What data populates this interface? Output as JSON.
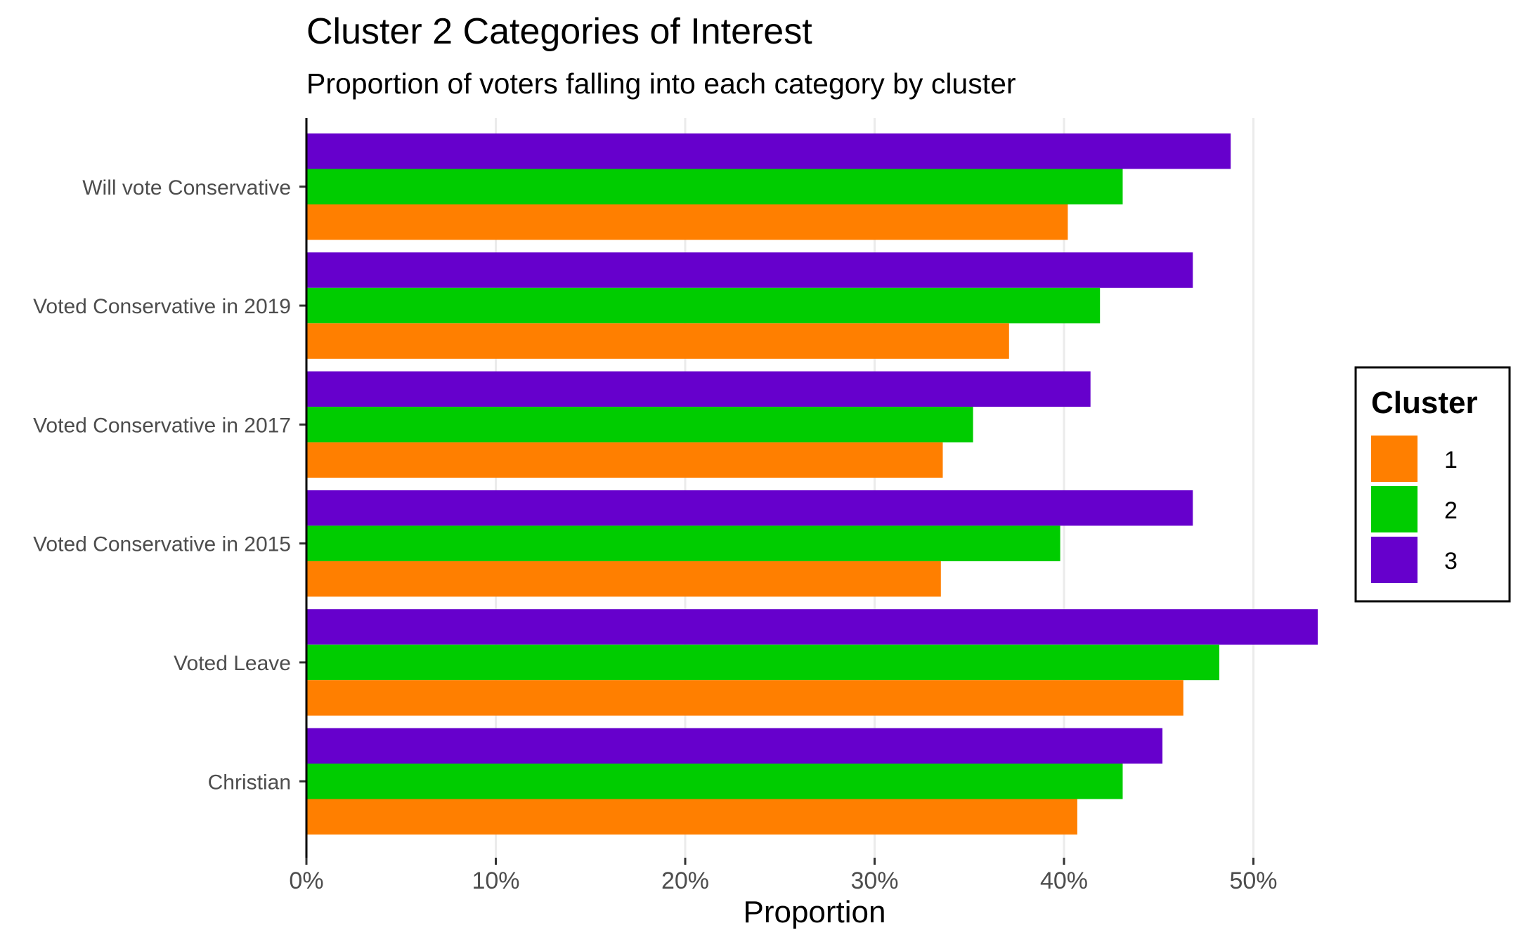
{
  "chart_data": {
    "type": "bar",
    "orientation": "horizontal",
    "title": "Cluster 2 Categories of Interest",
    "subtitle": "Proportion of voters falling into each category by cluster",
    "xlabel": "Proportion",
    "ylabel": "",
    "xlim": [
      0,
      0.55
    ],
    "x_ticks": [
      0,
      0.1,
      0.2,
      0.3,
      0.4,
      0.5
    ],
    "x_tick_labels": [
      "0%",
      "10%",
      "20%",
      "30%",
      "40%",
      "50%"
    ],
    "categories": [
      "Will vote Conservative",
      "Voted Conservative in 2019",
      "Voted Conservative in 2017",
      "Voted Conservative in 2015",
      "Voted Leave",
      "Christian"
    ],
    "series": [
      {
        "name": "1",
        "color": "#ff7f00",
        "values": [
          0.402,
          0.371,
          0.336,
          0.335,
          0.463,
          0.407
        ]
      },
      {
        "name": "2",
        "color": "#00cc00",
        "values": [
          0.431,
          0.419,
          0.352,
          0.398,
          0.482,
          0.431
        ]
      },
      {
        "name": "3",
        "color": "#6600cc",
        "values": [
          0.488,
          0.468,
          0.414,
          0.468,
          0.534,
          0.452
        ]
      }
    ],
    "legend": {
      "title": "Cluster",
      "position": "right"
    },
    "grid": {
      "x_major": true,
      "y": false
    }
  }
}
